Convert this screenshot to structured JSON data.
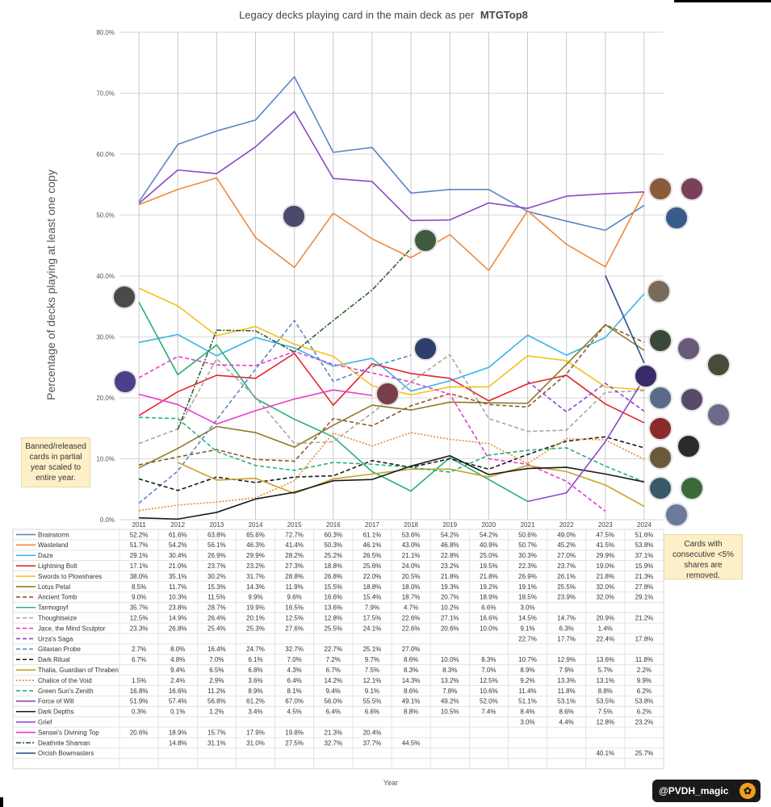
{
  "chart_data": {
    "type": "line",
    "title": "Legacy decks playing card in the main deck as per",
    "title_bold": "MTGTop8",
    "xlabel": "Year",
    "ylabel": "Percentage of decks playing at least one copy",
    "ylim": [
      0,
      80
    ],
    "yticks": [
      "0.0%",
      "10.0%",
      "20.0%",
      "30.0%",
      "40.0%",
      "50.0%",
      "60.0%",
      "70.0%",
      "80.0%"
    ],
    "categories": [
      "2011",
      "2012",
      "2013",
      "2014",
      "2015",
      "2016",
      "2017",
      "2018",
      "2019",
      "2020",
      "2021",
      "2022",
      "2023",
      "2024"
    ],
    "grid": true,
    "series": [
      {
        "name": "Brainstorm",
        "color": "#5b86c5",
        "dash": "solid",
        "values": [
          52.2,
          61.6,
          63.8,
          65.6,
          72.7,
          60.3,
          61.1,
          53.6,
          54.2,
          54.2,
          50.6,
          49.0,
          47.5,
          51.6
        ]
      },
      {
        "name": "Wasteland",
        "color": "#ef8a3c",
        "dash": "solid",
        "values": [
          51.7,
          54.2,
          56.1,
          46.3,
          41.4,
          50.3,
          46.1,
          43.0,
          46.8,
          40.9,
          50.7,
          45.2,
          41.5,
          53.8
        ]
      },
      {
        "name": "Daze",
        "color": "#3ab4e6",
        "dash": "solid",
        "values": [
          29.1,
          30.4,
          26.9,
          29.9,
          28.2,
          25.2,
          26.5,
          21.1,
          22.8,
          25.0,
          30.3,
          27.0,
          29.9,
          37.1
        ]
      },
      {
        "name": "Lightning Bolt",
        "color": "#e8242c",
        "dash": "solid",
        "values": [
          17.1,
          21.0,
          23.7,
          23.2,
          27.3,
          18.8,
          25.6,
          24.0,
          23.2,
          19.5,
          22.3,
          23.7,
          19.0,
          15.9
        ]
      },
      {
        "name": "Swords to Plowshares",
        "color": "#f2c21b",
        "dash": "solid",
        "values": [
          38.0,
          35.1,
          30.2,
          31.7,
          28.8,
          26.8,
          22.0,
          20.5,
          21.8,
          21.8,
          26.9,
          26.1,
          21.8,
          21.3
        ]
      },
      {
        "name": "Lotus Petal",
        "color": "#8f7a28",
        "dash": "solid",
        "values": [
          8.5,
          11.7,
          15.3,
          14.3,
          11.9,
          15.5,
          18.8,
          18.0,
          19.3,
          19.2,
          19.1,
          25.5,
          32.0,
          27.8
        ]
      },
      {
        "name": "Ancient Tomb",
        "color": "#8b5a2b",
        "dash": "dash",
        "values": [
          9.0,
          10.3,
          11.5,
          9.9,
          9.6,
          16.6,
          15.4,
          18.7,
          20.7,
          18.9,
          18.5,
          23.9,
          32.0,
          29.1
        ]
      },
      {
        "name": "Tarmogoyf",
        "color": "#27b07a",
        "dash": "solid",
        "values": [
          35.7,
          23.8,
          28.7,
          19.9,
          16.5,
          13.6,
          7.9,
          4.7,
          10.2,
          6.6,
          3.0,
          null,
          null,
          null
        ]
      },
      {
        "name": "Thoughtseize",
        "color": "#a6a6a6",
        "dash": "dash",
        "values": [
          12.5,
          14.9,
          26.4,
          20.1,
          12.5,
          12.8,
          17.5,
          22.6,
          27.1,
          16.6,
          14.5,
          14.7,
          20.9,
          21.2
        ]
      },
      {
        "name": "Jace, the Mind Sculptor",
        "color": "#e83ccc",
        "dash": "dash",
        "values": [
          23.3,
          26.8,
          25.4,
          25.3,
          27.6,
          25.5,
          24.1,
          22.6,
          20.6,
          10.0,
          9.1,
          6.3,
          1.4,
          null
        ]
      },
      {
        "name": "Urza's Saga",
        "color": "#8a4ac6",
        "dash": "dash",
        "values": [
          null,
          null,
          null,
          null,
          null,
          null,
          null,
          null,
          null,
          null,
          22.7,
          17.7,
          22.4,
          17.8
        ]
      },
      {
        "name": "Gitaxian Probe",
        "color": "#5b86c5",
        "dash": "dash",
        "values": [
          2.7,
          8.0,
          16.4,
          24.7,
          32.7,
          22.7,
          25.1,
          27.0,
          null,
          null,
          null,
          null,
          null,
          null
        ]
      },
      {
        "name": "Dark Ritual",
        "color": "#1a1a1a",
        "dash": "dash",
        "values": [
          6.7,
          4.8,
          7.0,
          6.1,
          7.0,
          7.2,
          9.7,
          8.6,
          10.0,
          8.3,
          10.7,
          12.9,
          13.6,
          11.8
        ]
      },
      {
        "name": "Thalia, Guardian of Thraben",
        "color": "#c9a227",
        "dash": "solid",
        "values": [
          null,
          9.4,
          6.5,
          6.8,
          4.3,
          6.7,
          7.5,
          8.3,
          8.3,
          7.0,
          8.9,
          7.9,
          5.7,
          2.2
        ]
      },
      {
        "name": "Chalice of the Void",
        "color": "#e8892e",
        "dash": "dot",
        "values": [
          1.5,
          2.4,
          2.9,
          3.6,
          6.4,
          14.2,
          12.1,
          14.3,
          13.2,
          12.5,
          9.2,
          13.3,
          13.1,
          9.9
        ]
      },
      {
        "name": "Green Sun's Zenith",
        "color": "#27b07a",
        "dash": "dash",
        "values": [
          16.8,
          16.6,
          11.2,
          8.9,
          8.1,
          9.4,
          9.1,
          8.6,
          7.8,
          10.6,
          11.4,
          11.8,
          8.8,
          6.2
        ]
      },
      {
        "name": "Force of Will",
        "color": "#8a4ac6",
        "dash": "solid",
        "values": [
          51.9,
          57.4,
          56.8,
          61.2,
          67.0,
          56.0,
          55.5,
          49.1,
          49.2,
          52.0,
          51.1,
          53.1,
          53.5,
          53.8
        ]
      },
      {
        "name": "Dark Depths",
        "color": "#1a1a1a",
        "dash": "solid",
        "values": [
          0.3,
          0.1,
          1.2,
          3.4,
          4.5,
          6.4,
          6.6,
          8.8,
          10.5,
          7.4,
          8.4,
          8.6,
          7.5,
          6.2
        ]
      },
      {
        "name": "Grief",
        "color": "#8a4ac6",
        "dash": "solid",
        "values": [
          null,
          null,
          null,
          null,
          null,
          null,
          null,
          null,
          null,
          null,
          3.0,
          4.4,
          12.8,
          23.2
        ]
      },
      {
        "name": "Sensei's Divining Top",
        "color": "#e83ccc",
        "dash": "solid",
        "values": [
          20.6,
          18.9,
          15.7,
          17.9,
          19.8,
          21.3,
          20.4,
          null,
          null,
          null,
          null,
          null,
          null,
          null
        ]
      },
      {
        "name": "Deathrite Shaman",
        "color": "#2e5e2e",
        "dash": "dashdot",
        "values": [
          null,
          14.8,
          31.1,
          31.0,
          27.5,
          32.7,
          37.7,
          44.5,
          null,
          null,
          null,
          null,
          null,
          null
        ]
      },
      {
        "name": "Orcish Bowmasters",
        "color": "#2b4f8a",
        "dash": "solid",
        "values": [
          null,
          null,
          null,
          null,
          null,
          null,
          null,
          null,
          null,
          null,
          null,
          null,
          40.1,
          25.7
        ]
      }
    ],
    "notes": {
      "left": "Banned/released cards in partial year scaled to entire year.",
      "right": "Cards with consecutive <5% shares are removed."
    },
    "handle": "@PVDH_magic"
  }
}
